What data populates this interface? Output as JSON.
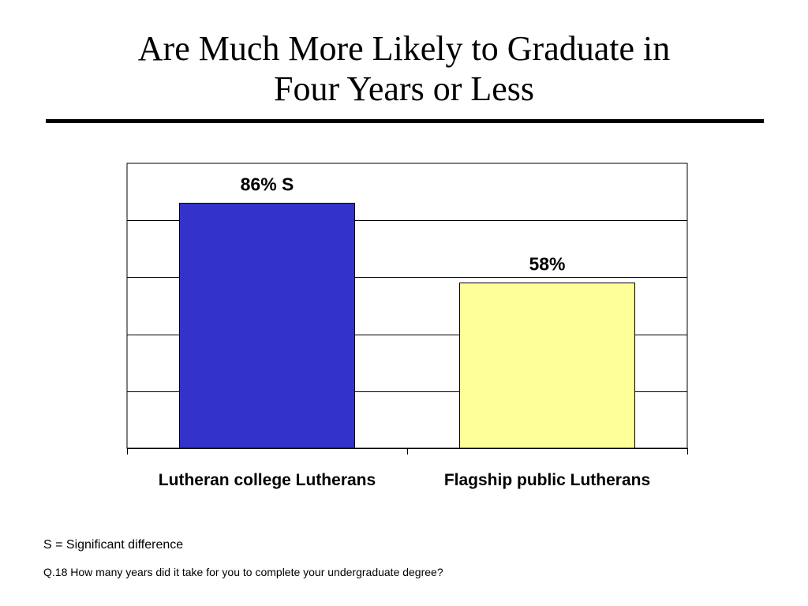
{
  "title_line1": "Are Much More Likely to Graduate in",
  "title_line2": "Four Years or Less",
  "footnotes": {
    "legend": "S = Significant difference",
    "question": "Q.18 How many years did it take for you to complete your undergraduate degree?"
  },
  "colors": {
    "bar_lutheran_college": "#3333cc",
    "bar_flagship_public": "#ffff99",
    "gridline": "#000000",
    "background": "#ffffff"
  },
  "chart_data": {
    "type": "bar",
    "title": "Are Much More Likely to Graduate in Four Years or Less",
    "categories": [
      "Lutheran college Lutherans",
      "Flagship public Lutherans"
    ],
    "values": [
      86,
      58
    ],
    "data_labels": [
      "86% S",
      "58%"
    ],
    "ylim": [
      0,
      100
    ],
    "xlabel": "",
    "ylabel": "",
    "grid": true,
    "legend": "none"
  }
}
